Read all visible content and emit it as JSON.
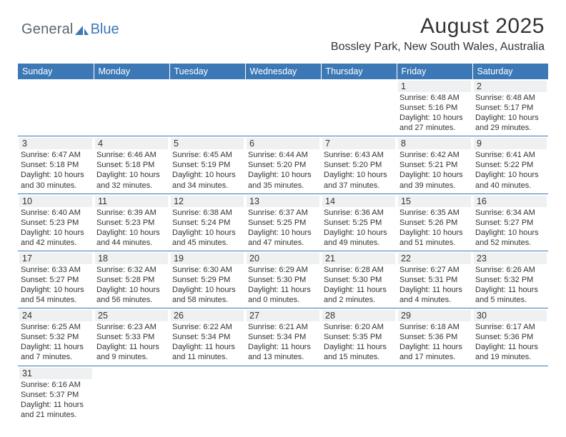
{
  "logo": {
    "general": "General",
    "blue": "Blue"
  },
  "title": "August 2025",
  "location": "Bossley Park, New South Wales, Australia",
  "colors": {
    "brand_blue": "#3b78b5",
    "header_text": "#ffffff",
    "body_text": "#333333",
    "daynum_bg": "#eef0f1"
  },
  "weekdays": [
    "Sunday",
    "Monday",
    "Tuesday",
    "Wednesday",
    "Thursday",
    "Friday",
    "Saturday"
  ],
  "weeks": [
    [
      null,
      null,
      null,
      null,
      null,
      {
        "n": "1",
        "sr": "6:48 AM",
        "ss": "5:16 PM",
        "dl": "10 hours and 27 minutes."
      },
      {
        "n": "2",
        "sr": "6:48 AM",
        "ss": "5:17 PM",
        "dl": "10 hours and 29 minutes."
      }
    ],
    [
      {
        "n": "3",
        "sr": "6:47 AM",
        "ss": "5:18 PM",
        "dl": "10 hours and 30 minutes."
      },
      {
        "n": "4",
        "sr": "6:46 AM",
        "ss": "5:18 PM",
        "dl": "10 hours and 32 minutes."
      },
      {
        "n": "5",
        "sr": "6:45 AM",
        "ss": "5:19 PM",
        "dl": "10 hours and 34 minutes."
      },
      {
        "n": "6",
        "sr": "6:44 AM",
        "ss": "5:20 PM",
        "dl": "10 hours and 35 minutes."
      },
      {
        "n": "7",
        "sr": "6:43 AM",
        "ss": "5:20 PM",
        "dl": "10 hours and 37 minutes."
      },
      {
        "n": "8",
        "sr": "6:42 AM",
        "ss": "5:21 PM",
        "dl": "10 hours and 39 minutes."
      },
      {
        "n": "9",
        "sr": "6:41 AM",
        "ss": "5:22 PM",
        "dl": "10 hours and 40 minutes."
      }
    ],
    [
      {
        "n": "10",
        "sr": "6:40 AM",
        "ss": "5:23 PM",
        "dl": "10 hours and 42 minutes."
      },
      {
        "n": "11",
        "sr": "6:39 AM",
        "ss": "5:23 PM",
        "dl": "10 hours and 44 minutes."
      },
      {
        "n": "12",
        "sr": "6:38 AM",
        "ss": "5:24 PM",
        "dl": "10 hours and 45 minutes."
      },
      {
        "n": "13",
        "sr": "6:37 AM",
        "ss": "5:25 PM",
        "dl": "10 hours and 47 minutes."
      },
      {
        "n": "14",
        "sr": "6:36 AM",
        "ss": "5:25 PM",
        "dl": "10 hours and 49 minutes."
      },
      {
        "n": "15",
        "sr": "6:35 AM",
        "ss": "5:26 PM",
        "dl": "10 hours and 51 minutes."
      },
      {
        "n": "16",
        "sr": "6:34 AM",
        "ss": "5:27 PM",
        "dl": "10 hours and 52 minutes."
      }
    ],
    [
      {
        "n": "17",
        "sr": "6:33 AM",
        "ss": "5:27 PM",
        "dl": "10 hours and 54 minutes."
      },
      {
        "n": "18",
        "sr": "6:32 AM",
        "ss": "5:28 PM",
        "dl": "10 hours and 56 minutes."
      },
      {
        "n": "19",
        "sr": "6:30 AM",
        "ss": "5:29 PM",
        "dl": "10 hours and 58 minutes."
      },
      {
        "n": "20",
        "sr": "6:29 AM",
        "ss": "5:30 PM",
        "dl": "11 hours and 0 minutes."
      },
      {
        "n": "21",
        "sr": "6:28 AM",
        "ss": "5:30 PM",
        "dl": "11 hours and 2 minutes."
      },
      {
        "n": "22",
        "sr": "6:27 AM",
        "ss": "5:31 PM",
        "dl": "11 hours and 4 minutes."
      },
      {
        "n": "23",
        "sr": "6:26 AM",
        "ss": "5:32 PM",
        "dl": "11 hours and 5 minutes."
      }
    ],
    [
      {
        "n": "24",
        "sr": "6:25 AM",
        "ss": "5:32 PM",
        "dl": "11 hours and 7 minutes."
      },
      {
        "n": "25",
        "sr": "6:23 AM",
        "ss": "5:33 PM",
        "dl": "11 hours and 9 minutes."
      },
      {
        "n": "26",
        "sr": "6:22 AM",
        "ss": "5:34 PM",
        "dl": "11 hours and 11 minutes."
      },
      {
        "n": "27",
        "sr": "6:21 AM",
        "ss": "5:34 PM",
        "dl": "11 hours and 13 minutes."
      },
      {
        "n": "28",
        "sr": "6:20 AM",
        "ss": "5:35 PM",
        "dl": "11 hours and 15 minutes."
      },
      {
        "n": "29",
        "sr": "6:18 AM",
        "ss": "5:36 PM",
        "dl": "11 hours and 17 minutes."
      },
      {
        "n": "30",
        "sr": "6:17 AM",
        "ss": "5:36 PM",
        "dl": "11 hours and 19 minutes."
      }
    ],
    [
      {
        "n": "31",
        "sr": "6:16 AM",
        "ss": "5:37 PM",
        "dl": "11 hours and 21 minutes."
      },
      null,
      null,
      null,
      null,
      null,
      null
    ]
  ],
  "labels": {
    "sunrise": "Sunrise:",
    "sunset": "Sunset:",
    "daylight": "Daylight:"
  }
}
